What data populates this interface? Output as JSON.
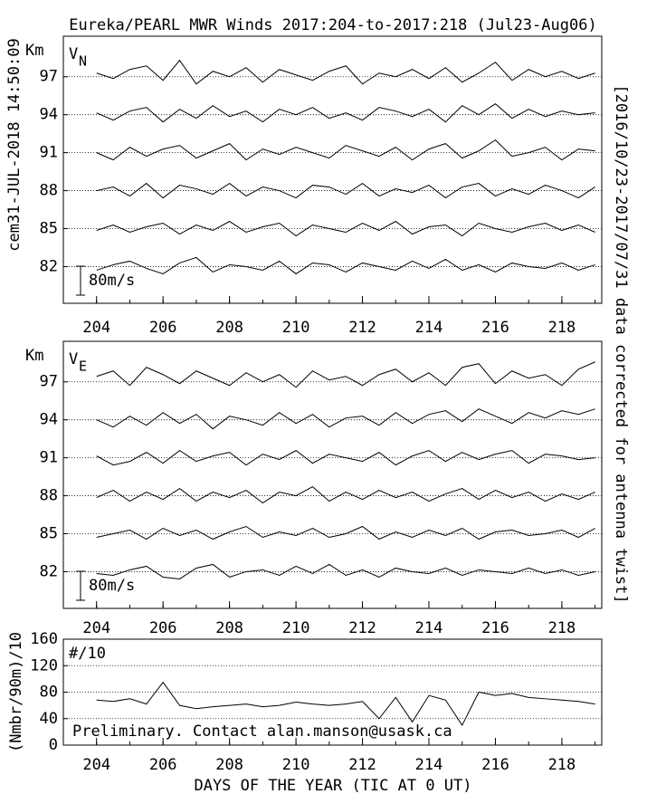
{
  "title": "Eureka/PEARL MWR Winds 2017:204-to-2017:218 (Jul23-Aug06)",
  "left_note": "cem31-JUL-2018 14:50:09",
  "right_note": "[2016/10/23-2017/07/31 data corrected for antenna twist]",
  "x_label": "DAYS OF THE YEAR (TIC AT 0 UT)",
  "chart_data": [
    {
      "type": "line",
      "panel_label": "V",
      "panel_subscript": "N",
      "ylabel": "Km",
      "scale_bar": {
        "label": "80m/s",
        "value": 80
      },
      "xlim": [
        203,
        219.2
      ],
      "xticks": [
        204,
        206,
        208,
        210,
        212,
        214,
        216,
        218
      ],
      "xminorticks": [
        203,
        204,
        205,
        206,
        207,
        208,
        209,
        210,
        211,
        212,
        213,
        214,
        215,
        216,
        217,
        218,
        219
      ],
      "ylim": [
        79.1,
        100.2
      ],
      "yticks": [
        82,
        85,
        88,
        91,
        94,
        97
      ],
      "grid": true,
      "color": "#000000",
      "x": [
        204,
        204.5,
        205,
        205.5,
        206,
        206.5,
        207,
        207.5,
        208,
        208.5,
        209,
        209.5,
        210,
        210.5,
        211,
        211.5,
        212,
        212.5,
        213,
        213.5,
        214,
        214.5,
        215,
        215.5,
        216,
        216.5,
        217,
        217.5,
        218,
        218.5,
        219
      ],
      "series": [
        {
          "baseline": 97,
          "values": [
            10,
            -5,
            20,
            30,
            -10,
            45,
            -20,
            15,
            0,
            25,
            -15,
            20,
            5,
            -10,
            15,
            30,
            -20,
            10,
            0,
            20,
            -5,
            25,
            -15,
            10,
            40,
            -10,
            20,
            0,
            15,
            -5,
            10
          ]
        },
        {
          "baseline": 94,
          "values": [
            5,
            -15,
            10,
            20,
            -20,
            15,
            -10,
            25,
            -5,
            10,
            -20,
            15,
            0,
            20,
            -10,
            5,
            -15,
            20,
            10,
            -5,
            15,
            -20,
            25,
            0,
            30,
            -10,
            15,
            -5,
            10,
            0,
            5
          ]
        },
        {
          "baseline": 91,
          "values": [
            0,
            -20,
            15,
            -10,
            10,
            20,
            -15,
            5,
            25,
            -20,
            10,
            -5,
            15,
            0,
            -15,
            20,
            5,
            -10,
            15,
            -20,
            10,
            25,
            -15,
            5,
            35,
            -10,
            0,
            15,
            -20,
            10,
            5
          ]
        },
        {
          "baseline": 88,
          "values": [
            0,
            10,
            -15,
            20,
            -20,
            15,
            5,
            -10,
            20,
            -15,
            10,
            0,
            -20,
            15,
            10,
            -10,
            20,
            -15,
            5,
            -5,
            15,
            -20,
            10,
            20,
            -15,
            5,
            -10,
            15,
            0,
            -20,
            10
          ]
        },
        {
          "baseline": 85,
          "values": [
            -5,
            10,
            -10,
            5,
            15,
            -15,
            10,
            -5,
            20,
            -10,
            5,
            15,
            -20,
            10,
            0,
            -10,
            15,
            -5,
            20,
            -15,
            5,
            10,
            -20,
            15,
            0,
            -10,
            5,
            15,
            -5,
            10,
            -10
          ]
        },
        {
          "baseline": 82,
          "values": [
            -10,
            5,
            15,
            -5,
            -20,
            10,
            25,
            -15,
            5,
            0,
            -10,
            15,
            -20,
            10,
            5,
            -15,
            10,
            0,
            -10,
            15,
            -5,
            20,
            -10,
            5,
            -15,
            10,
            0,
            -5,
            10,
            -10,
            5
          ]
        }
      ]
    },
    {
      "type": "line",
      "panel_label": "V",
      "panel_subscript": "E",
      "ylabel": "Km",
      "scale_bar": {
        "label": "80m/s",
        "value": 80
      },
      "xlim": [
        203,
        219.2
      ],
      "xticks": [
        204,
        206,
        208,
        210,
        212,
        214,
        216,
        218
      ],
      "xminorticks": [
        203,
        204,
        205,
        206,
        207,
        208,
        209,
        210,
        211,
        212,
        213,
        214,
        215,
        216,
        217,
        218,
        219
      ],
      "ylim": [
        79.1,
        100.2
      ],
      "yticks": [
        82,
        85,
        88,
        91,
        94,
        97
      ],
      "grid": true,
      "color": "#000000",
      "x": [
        204,
        204.5,
        205,
        205.5,
        206,
        206.5,
        207,
        207.5,
        208,
        208.5,
        209,
        209.5,
        210,
        210.5,
        211,
        211.5,
        212,
        212.5,
        213,
        213.5,
        214,
        214.5,
        215,
        215.5,
        216,
        216.5,
        217,
        217.5,
        218,
        218.5,
        219
      ],
      "series": [
        {
          "baseline": 97,
          "values": [
            15,
            30,
            -10,
            40,
            20,
            -5,
            30,
            10,
            -10,
            25,
            0,
            20,
            -15,
            30,
            5,
            15,
            -10,
            20,
            35,
            0,
            25,
            -10,
            40,
            50,
            -5,
            30,
            10,
            20,
            -10,
            35,
            55
          ]
        },
        {
          "baseline": 94,
          "values": [
            0,
            -20,
            10,
            -15,
            20,
            -10,
            15,
            -25,
            10,
            0,
            -15,
            20,
            -10,
            15,
            -20,
            5,
            10,
            -15,
            20,
            -10,
            15,
            25,
            -5,
            30,
            10,
            -10,
            20,
            5,
            25,
            15,
            30
          ]
        },
        {
          "baseline": 91,
          "values": [
            5,
            -20,
            -10,
            15,
            -15,
            20,
            -10,
            5,
            15,
            -20,
            10,
            -5,
            20,
            -15,
            10,
            0,
            -10,
            15,
            -20,
            5,
            20,
            -10,
            15,
            -5,
            10,
            20,
            -15,
            10,
            5,
            -5,
            0
          ]
        },
        {
          "baseline": 88,
          "values": [
            -5,
            15,
            -15,
            10,
            -10,
            20,
            -15,
            10,
            -5,
            15,
            -20,
            10,
            0,
            25,
            -15,
            10,
            -10,
            15,
            -5,
            10,
            -15,
            5,
            20,
            -10,
            15,
            -5,
            10,
            -15,
            5,
            -10,
            10
          ]
        },
        {
          "baseline": 85,
          "values": [
            -10,
            0,
            10,
            -15,
            15,
            -5,
            10,
            -15,
            5,
            20,
            -10,
            5,
            -5,
            15,
            -10,
            0,
            20,
            -15,
            5,
            -10,
            10,
            -5,
            15,
            -15,
            5,
            10,
            -5,
            0,
            10,
            -10,
            15
          ]
        },
        {
          "baseline": 82,
          "values": [
            -5,
            -10,
            5,
            15,
            -15,
            -20,
            10,
            20,
            -15,
            0,
            5,
            -10,
            15,
            -5,
            20,
            -10,
            5,
            -15,
            10,
            0,
            -5,
            10,
            -10,
            5,
            0,
            -5,
            10,
            -5,
            5,
            -10,
            0
          ]
        }
      ]
    },
    {
      "type": "line",
      "panel_label": "#/10",
      "ylabel": "(Nmbr/90m)/10",
      "note": "Preliminary. Contact alan.manson@usask.ca",
      "xlim": [
        203,
        219.2
      ],
      "xticks": [
        204,
        206,
        208,
        210,
        212,
        214,
        216,
        218
      ],
      "xminorticks": [
        203,
        204,
        205,
        206,
        207,
        208,
        209,
        210,
        211,
        212,
        213,
        214,
        215,
        216,
        217,
        218,
        219
      ],
      "ylim": [
        0,
        160
      ],
      "yticks": [
        0,
        40,
        80,
        120,
        160
      ],
      "grid": true,
      "color": "#000000",
      "x": [
        204,
        204.5,
        205,
        205.5,
        206,
        206.5,
        207,
        207.5,
        208,
        208.5,
        209,
        209.5,
        210,
        210.5,
        211,
        211.5,
        212,
        212.5,
        213,
        213.5,
        214,
        214.5,
        215,
        215.5,
        216,
        216.5,
        217,
        217.5,
        218,
        218.5,
        219
      ],
      "values": [
        68,
        66,
        70,
        62,
        95,
        60,
        55,
        58,
        60,
        62,
        58,
        60,
        65,
        62,
        60,
        62,
        66,
        40,
        72,
        35,
        75,
        68,
        30,
        80,
        75,
        78,
        72,
        70,
        68,
        66,
        62
      ]
    }
  ]
}
